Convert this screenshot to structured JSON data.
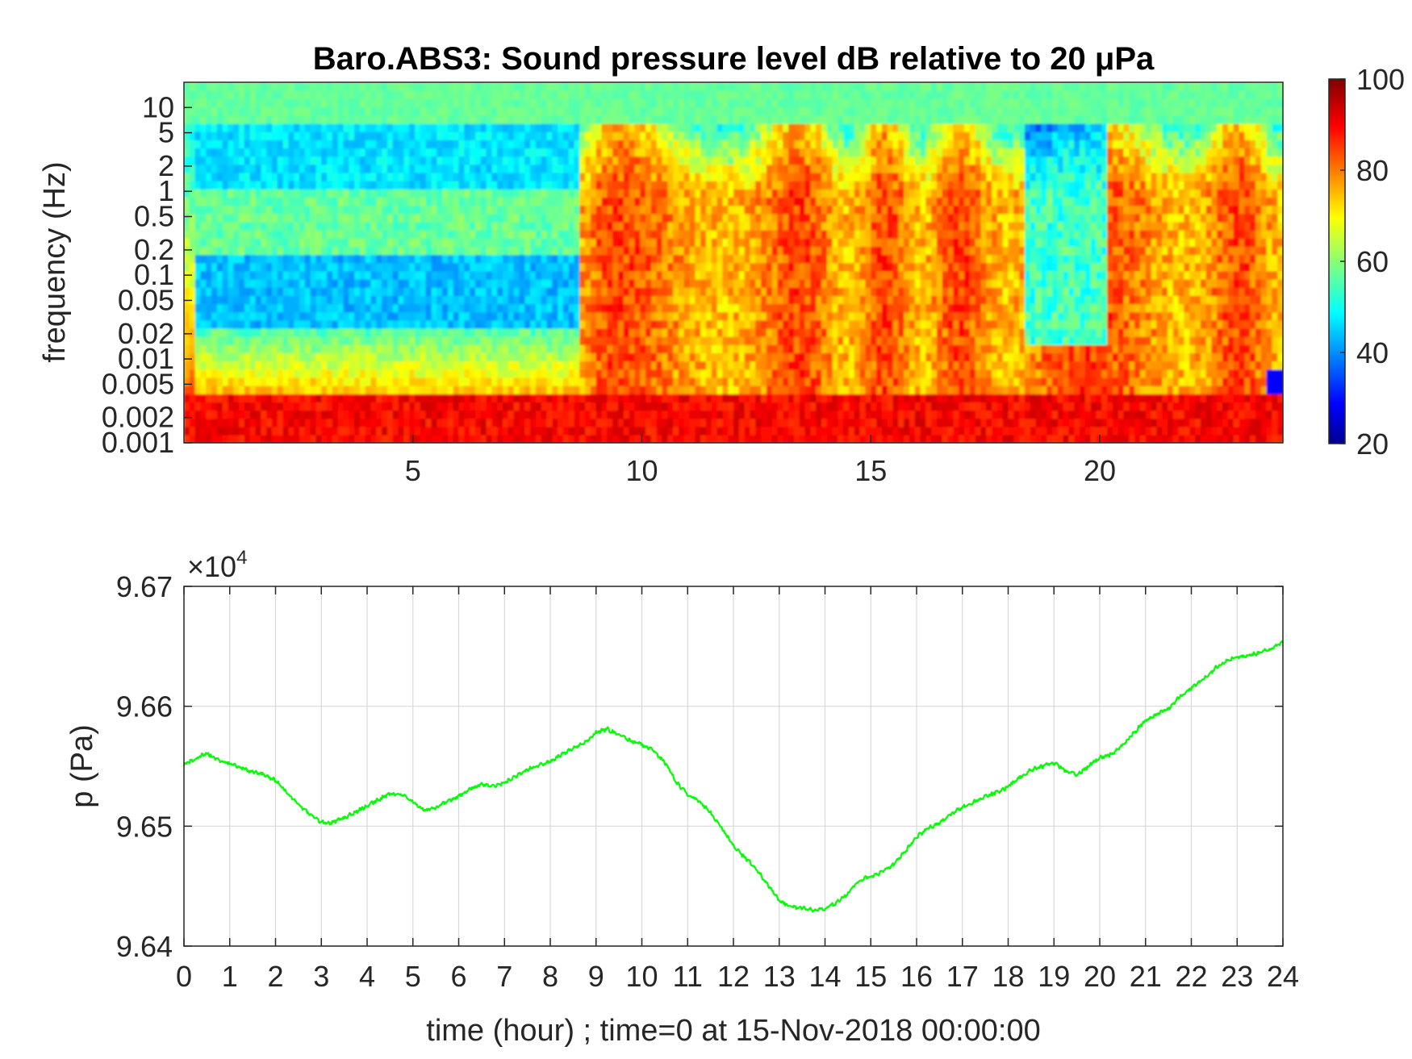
{
  "chart_data": [
    {
      "type": "heatmap",
      "title": "Baro.ABS3: Sound pressure level dB relative to 20 μPa",
      "xlabel": "",
      "ylabel": "frequency (Hz)",
      "xlim": [
        0,
        24
      ],
      "x_ticks": [
        5,
        10,
        15,
        20
      ],
      "y_scale": "log",
      "ylim": [
        0.001,
        20
      ],
      "y_ticks": [
        0.001,
        0.002,
        0.005,
        0.01,
        0.02,
        0.05,
        0.1,
        0.2,
        0.5,
        1,
        2,
        5,
        10
      ],
      "y_tick_labels": [
        "0.001",
        "0.002",
        "0.005",
        "0.01",
        "0.02",
        "0.05",
        "0.1",
        "0.2",
        "0.5",
        "1",
        "2",
        "5",
        "10"
      ],
      "colormap": "jet",
      "colorbar": {
        "range": [
          20,
          100
        ],
        "ticks": [
          20,
          40,
          60,
          80,
          100
        ],
        "tick_labels": [
          "20",
          "40",
          "60",
          "80",
          "100"
        ]
      },
      "description_levels": {
        "quiet_hours": [
          0,
          8.6
        ],
        "loud_hours": [
          8.6,
          24
        ],
        "quiet_band_dB": 45,
        "loud_band_dB": 85,
        "low_freq_dB": 90
      }
    },
    {
      "type": "line",
      "title": "",
      "xlabel": "time (hour) ; time=0 at 15-Nov-2018 00:00:00",
      "ylabel": "p (Pa)",
      "y_multiplier_label": "×10",
      "y_multiplier_exp": "4",
      "xlim": [
        0,
        24
      ],
      "ylim": [
        96400,
        96700
      ],
      "x_ticks": [
        0,
        1,
        2,
        3,
        4,
        5,
        6,
        7,
        8,
        9,
        10,
        11,
        12,
        13,
        14,
        15,
        16,
        17,
        18,
        19,
        20,
        21,
        22,
        23,
        24
      ],
      "x_tick_labels": [
        "0",
        "1",
        "2",
        "3",
        "4",
        "5",
        "6",
        "7",
        "8",
        "9",
        "10",
        "11",
        "12",
        "13",
        "14",
        "15",
        "16",
        "17",
        "18",
        "19",
        "20",
        "21",
        "22",
        "23",
        "24"
      ],
      "y_ticks": [
        96400,
        96500,
        96600,
        96700
      ],
      "y_tick_labels": [
        "9.64",
        "9.65",
        "9.66",
        "9.67"
      ],
      "grid": true,
      "series": [
        {
          "color": "#00ff00",
          "x": [
            0,
            0.25,
            0.5,
            0.75,
            1.0,
            1.25,
            1.5,
            1.75,
            2.0,
            2.25,
            2.5,
            2.75,
            3.0,
            3.25,
            3.5,
            3.75,
            4.0,
            4.25,
            4.5,
            4.75,
            5.0,
            5.25,
            5.5,
            5.75,
            6.0,
            6.25,
            6.5,
            6.75,
            7.0,
            7.25,
            7.5,
            7.75,
            8.0,
            8.25,
            8.5,
            8.75,
            9.0,
            9.25,
            9.5,
            9.75,
            10.0,
            10.25,
            10.5,
            10.75,
            11.0,
            11.25,
            11.5,
            11.75,
            12.0,
            12.25,
            12.5,
            12.75,
            13.0,
            13.25,
            13.5,
            13.75,
            14.0,
            14.25,
            14.5,
            14.75,
            15.0,
            15.25,
            15.5,
            15.75,
            16.0,
            16.25,
            16.5,
            16.75,
            17.0,
            17.25,
            17.5,
            17.75,
            18.0,
            18.25,
            18.5,
            18.75,
            19.0,
            19.25,
            19.5,
            19.75,
            20.0,
            20.25,
            20.5,
            20.75,
            21.0,
            21.25,
            21.5,
            21.75,
            22.0,
            22.25,
            22.5,
            22.75,
            23.0,
            23.25,
            23.5,
            23.75,
            24.0
          ],
          "y": [
            96551,
            96556,
            96561,
            96555,
            96552,
            96549,
            96545,
            96543,
            96538,
            96528,
            96518,
            96510,
            96503,
            96503,
            96507,
            96512,
            96517,
            96522,
            96527,
            96526,
            96521,
            96513,
            96515,
            96521,
            96525,
            96531,
            96535,
            96533,
            96536,
            96542,
            96547,
            96551,
            96554,
            96560,
            96565,
            96570,
            96578,
            96581,
            96576,
            96571,
            96568,
            96563,
            96553,
            96537,
            96526,
            96521,
            96511,
            96498,
            96483,
            96474,
            96464,
            96451,
            96438,
            96433,
            96432,
            96430,
            96431,
            96436,
            96444,
            96455,
            96458,
            96462,
            96468,
            96479,
            96491,
            96498,
            96503,
            96510,
            96516,
            96520,
            96525,
            96528,
            96533,
            96541,
            96547,
            96550,
            96553,
            96546,
            96543,
            96550,
            96557,
            96560,
            96568,
            96578,
            96588,
            96593,
            96598,
            96608,
            96615,
            96622,
            96631,
            96637,
            96641,
            96642,
            96645,
            96648,
            96653
          ]
        }
      ]
    }
  ]
}
